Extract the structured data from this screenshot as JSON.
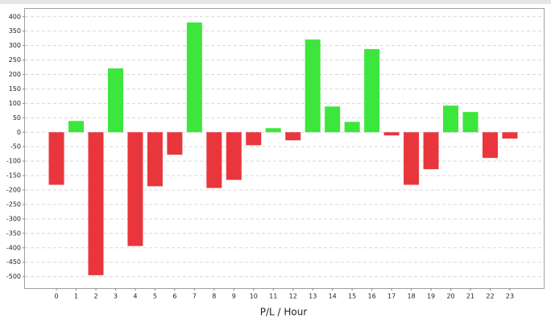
{
  "chart_data": {
    "type": "bar",
    "x_label": "P/L / Hour",
    "categories": [
      "0",
      "1",
      "2",
      "3",
      "4",
      "5",
      "6",
      "7",
      "8",
      "9",
      "10",
      "11",
      "12",
      "13",
      "14",
      "15",
      "16",
      "17",
      "18",
      "19",
      "20",
      "21",
      "22",
      "23"
    ],
    "values": [
      -182,
      39,
      -495,
      221,
      -394,
      -187,
      -78,
      380,
      -193,
      -165,
      -45,
      14,
      -28,
      321,
      89,
      36,
      288,
      -11,
      -182,
      -128,
      92,
      70,
      -89,
      -22
    ],
    "positive_color": "#3ce63c",
    "negative_color": "#e8363c",
    "ylim": [
      -540,
      430
    ],
    "yticks": [
      -500,
      -450,
      -400,
      -350,
      -300,
      -250,
      -200,
      -150,
      -100,
      -50,
      0,
      50,
      100,
      150,
      200,
      250,
      300,
      350,
      400
    ],
    "grid": true
  }
}
